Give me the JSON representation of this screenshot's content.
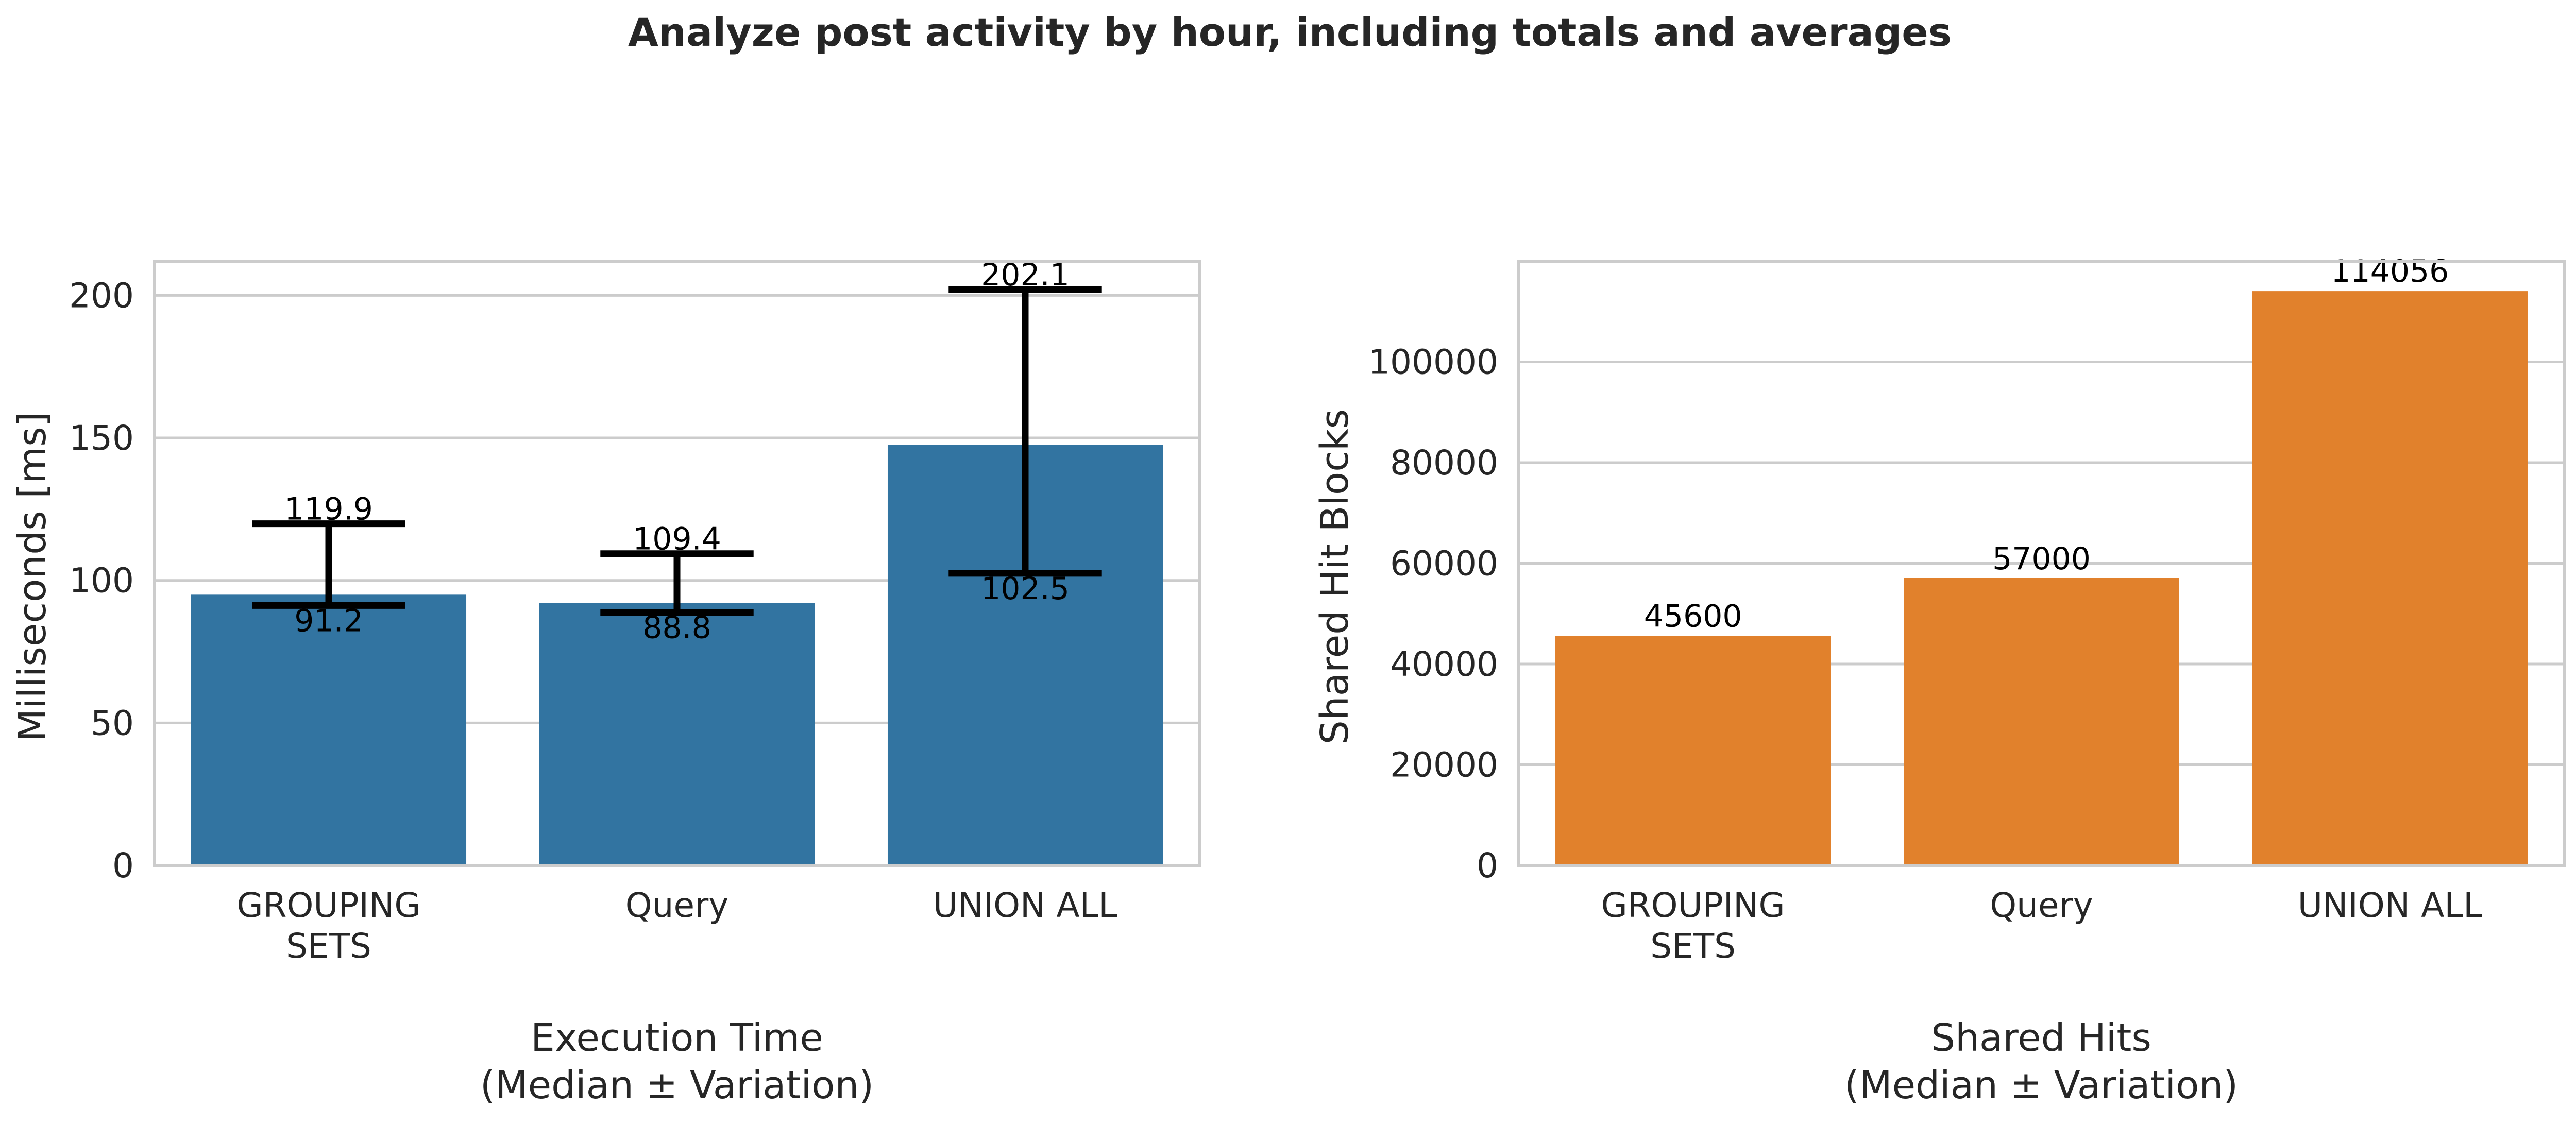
{
  "figure": {
    "title": "Analyze post activity by hour, including totals and averages"
  },
  "chart_data": [
    {
      "type": "bar",
      "title": "",
      "categories": [
        "GROUPING SETS",
        "Query",
        "UNION ALL"
      ],
      "category_labels": [
        [
          "GROUPING",
          "SETS"
        ],
        [
          "Query"
        ],
        [
          "UNION ALL"
        ]
      ],
      "values": [
        95,
        92,
        147.5
      ],
      "error_low": [
        91.2,
        88.8,
        102.5
      ],
      "error_high": [
        119.9,
        109.4,
        202.1
      ],
      "xlabel": [
        "Execution Time",
        "(Median ± Variation)"
      ],
      "ylabel": "Milliseconds [ms]",
      "ylim": [
        0,
        212
      ],
      "yticks": [
        0,
        50,
        100,
        150,
        200
      ],
      "color": "#3274a1",
      "grid": true
    },
    {
      "type": "bar",
      "title": "",
      "categories": [
        "GROUPING SETS",
        "Query",
        "UNION ALL"
      ],
      "category_labels": [
        [
          "GROUPING",
          "SETS"
        ],
        [
          "Query"
        ],
        [
          "UNION ALL"
        ]
      ],
      "values": [
        45600,
        57000,
        114056
      ],
      "data_labels": [
        "45600",
        "57000",
        "114056"
      ],
      "xlabel": [
        "Shared Hits",
        "(Median ± Variation)"
      ],
      "ylabel": "Shared Hit Blocks",
      "ylim": [
        0,
        120000
      ],
      "yticks": [
        0,
        20000,
        40000,
        60000,
        80000,
        100000
      ],
      "color": "#e1812c",
      "grid": true
    }
  ]
}
